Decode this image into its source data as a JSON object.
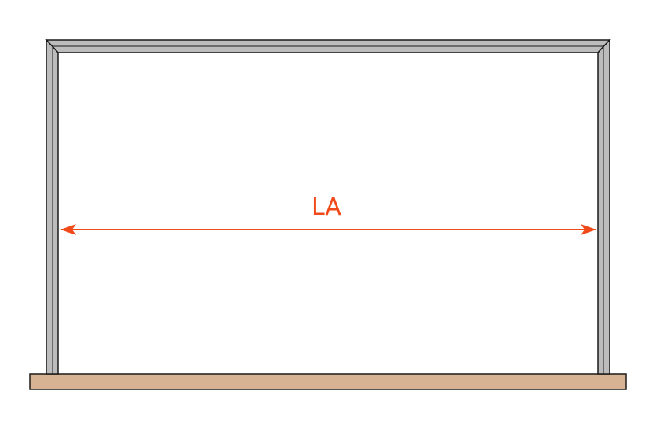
{
  "diagram": {
    "dimension_label": "LA",
    "colors": {
      "frame_fill": "#bcbcbc",
      "frame_stroke": "#1a1a1a",
      "floor_fill": "#d7b393",
      "dimension": "#f04a1a",
      "background": "#ffffff"
    }
  }
}
